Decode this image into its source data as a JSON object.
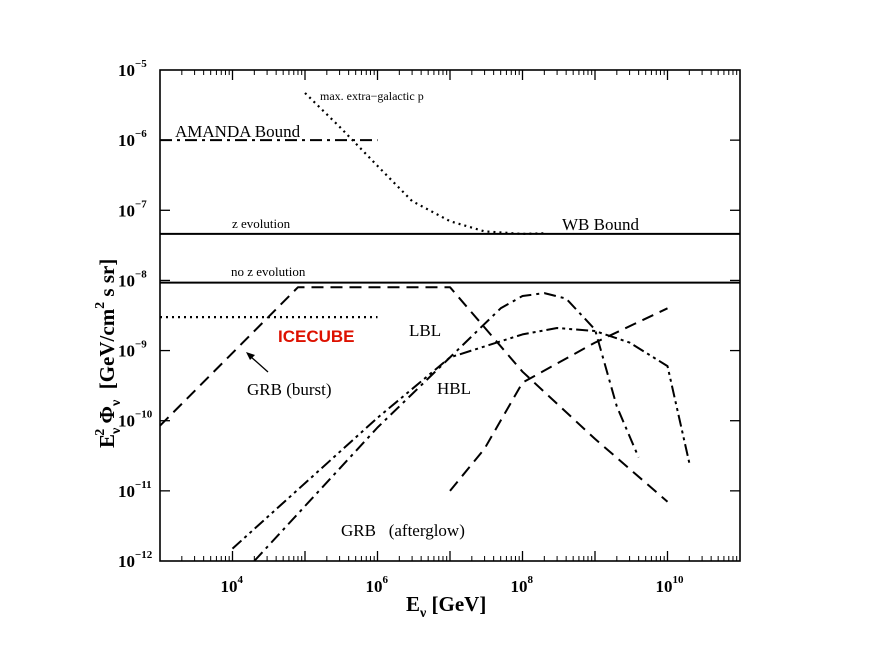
{
  "chart_data": {
    "type": "line",
    "xscale": "log",
    "yscale": "log",
    "xlim": [
      1000,
      100000000000.0
    ],
    "ylim": [
      1e-12,
      1e-05
    ],
    "grid": false,
    "xlabel": {
      "main": "E",
      "sub": "ν",
      "rest": " [GeV]"
    },
    "ylabel": {
      "lead": "E",
      "sub1": "ν",
      "sup1": "2",
      "phi": " Φ",
      "sub2": "ν",
      "bracket": "  [GeV/cm",
      "sup2": "2",
      "tail": " s sr]"
    },
    "x_ticks": [
      {
        "value": 10000,
        "base": "10",
        "exp": "4"
      },
      {
        "value": 1000000,
        "base": "10",
        "exp": "6"
      },
      {
        "value": 100000000,
        "base": "10",
        "exp": "8"
      },
      {
        "value": 10000000000,
        "base": "10",
        "exp": "10"
      }
    ],
    "y_ticks": [
      {
        "value": 1e-12,
        "base": "10",
        "exp": "−12"
      },
      {
        "value": 1e-11,
        "base": "10",
        "exp": "−11"
      },
      {
        "value": 1e-10,
        "base": "10",
        "exp": "−10"
      },
      {
        "value": 1e-09,
        "base": "10",
        "exp": "−9"
      },
      {
        "value": 1e-08,
        "base": "10",
        "exp": "−8"
      },
      {
        "value": 1e-07,
        "base": "10",
        "exp": "−7"
      },
      {
        "value": 1e-06,
        "base": "10",
        "exp": "−6"
      },
      {
        "value": 1e-05,
        "base": "10",
        "exp": "−5"
      }
    ],
    "series": [
      {
        "name": "AMANDA Bound",
        "style": "dashdot",
        "x": [
          1000,
          1000000
        ],
        "y": [
          1e-06,
          1e-06
        ]
      },
      {
        "name": "max. extra−galactic p",
        "style": "dotted",
        "x": [
          100000.0,
          300000.0,
          1000000.0,
          3000000.0,
          10000000.0,
          30000000.0,
          100000000.0,
          200000000.0
        ],
        "y": [
          4.7e-06,
          1.55e-06,
          4.3e-07,
          1.35e-07,
          7e-08,
          5e-08,
          4.6e-08,
          4.7e-08
        ]
      },
      {
        "name": "z evolution",
        "style": "solid",
        "x": [
          1000,
          100000000000.0
        ],
        "y": [
          4.6e-08,
          4.6e-08
        ]
      },
      {
        "name": "no z evolution",
        "style": "solid",
        "x": [
          1000,
          100000000000.0
        ],
        "y": [
          9.3e-09,
          9.3e-09
        ]
      },
      {
        "name": "ICECUBE",
        "style": "dotted",
        "color": "#000000",
        "x": [
          1000,
          1000000
        ],
        "y": [
          3e-09,
          3e-09
        ]
      },
      {
        "name": "GRB (burst)",
        "style": "dashed",
        "x": [
          1000,
          80000.0,
          10000000.0,
          100000000.0,
          1000000000.0,
          10000000000.0
        ],
        "y": [
          8.5e-11,
          8e-09,
          8e-09,
          5e-10,
          5.5e-11,
          7e-12
        ]
      },
      {
        "name": "LBL",
        "style": "dashdot",
        "x": [
          20000.0,
          1000000.0,
          10000000.0,
          50000000.0,
          100000000.0,
          200000000.0,
          400000000.0,
          1000000000.0,
          2000000000.0,
          4000000000.0
        ],
        "y": [
          1e-12,
          8e-11,
          8e-10,
          4e-09,
          6e-09,
          6.6e-09,
          5.5e-09,
          2e-09,
          1.6e-10,
          3e-11
        ]
      },
      {
        "name": "HBL",
        "style": "dashdotdot",
        "x": [
          10000.0,
          1000000.0,
          10000000.0,
          100000000.0,
          300000000.0,
          1000000000.0,
          3000000000.0,
          10000000000.0,
          20000000000.0
        ],
        "y": [
          1.5e-12,
          1.1e-10,
          8e-10,
          1.7e-09,
          2.1e-09,
          1.9e-09,
          1.3e-09,
          6e-10,
          2.5e-11
        ]
      },
      {
        "name": "GRB (afterglow)",
        "style": "dashed",
        "x": [
          10000000.0,
          30000000.0,
          100000000.0,
          1000000000.0,
          10000000000.0
        ],
        "y": [
          1e-11,
          4e-11,
          3.5e-10,
          1.3e-09,
          4e-09
        ]
      }
    ],
    "annotations": {
      "amanda": "AMANDA Bound",
      "max_p": "max. extra−galactic p",
      "z_evolution": "z evolution",
      "wb_bound": "WB Bound",
      "no_z_evolution": "no z evolution",
      "icecube": "ICECUBE",
      "lbl": "LBL",
      "hbl": "HBL",
      "grb_burst": "GRB (burst)",
      "grb_afterglow": "GRB   (afterglow)"
    },
    "colors": {
      "icecube_label": "#dd1100",
      "line": "#000000"
    }
  }
}
